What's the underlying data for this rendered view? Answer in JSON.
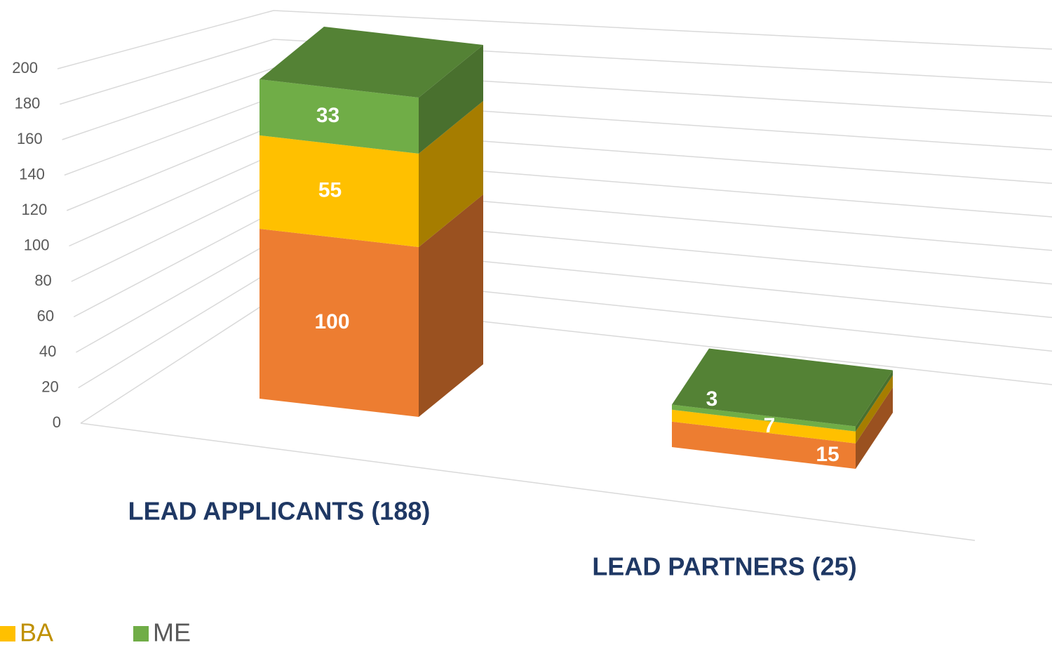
{
  "chart_data": {
    "type": "bar3d_stacked",
    "categories": [
      "LEAD APPLICANTS (188)",
      "LEAD PARTNERS (25)"
    ],
    "series": [
      {
        "color": "#ed7d31",
        "values": [
          100,
          15
        ]
      },
      {
        "name": "BA",
        "color": "#ffc000",
        "values": [
          55,
          7
        ]
      },
      {
        "name": "ME",
        "color": "#70ad47",
        "values": [
          33,
          3
        ]
      }
    ],
    "ylim": [
      0,
      200
    ],
    "yticks": [
      0,
      20,
      40,
      60,
      80,
      100,
      120,
      140,
      160,
      180,
      200
    ],
    "grid": true
  }
}
